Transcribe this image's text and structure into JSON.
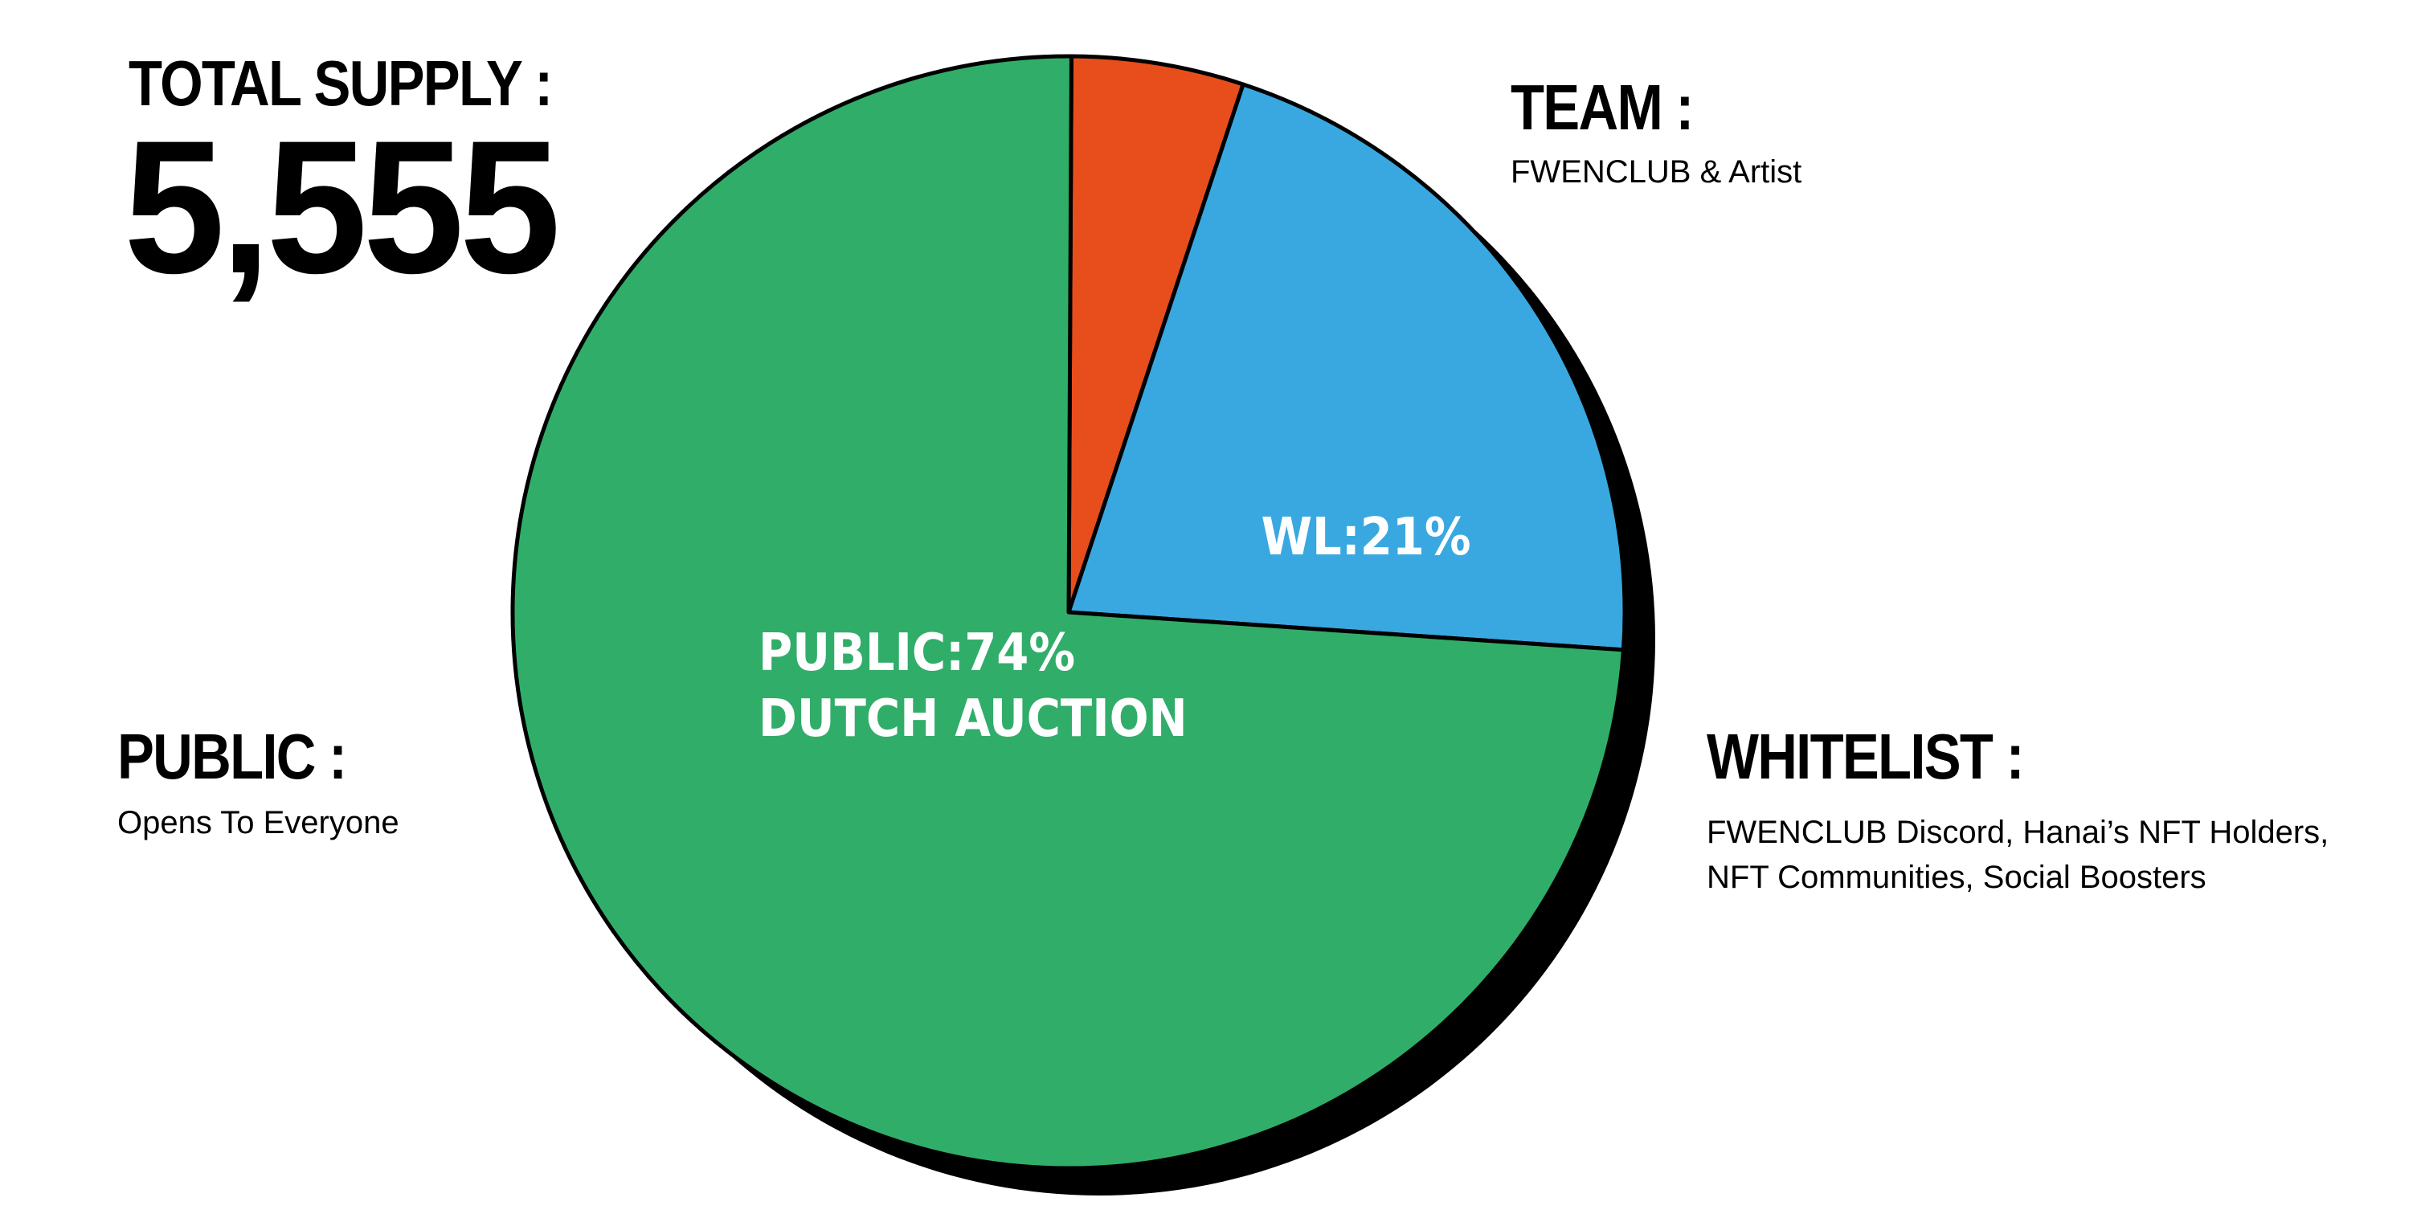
{
  "headline": {
    "total_label": "TOTAL SUPPLY :",
    "total_value": "5,555"
  },
  "annotations": {
    "team": {
      "title": "TEAM :",
      "desc": "FWENCLUB & Artist"
    },
    "public": {
      "title": "PUBLIC :",
      "desc": "Opens To Everyone"
    },
    "whitelist": {
      "title": "WHITELIST :",
      "desc_line1": "FWENCLUB Discord, Hanai’s NFT Holders,",
      "desc_line2": "NFT Communities, Social Boosters"
    }
  },
  "chart_data": {
    "type": "pie",
    "title": "",
    "slices": [
      {
        "key": "team",
        "value": 5,
        "color": "#e84e1c",
        "label_lines": []
      },
      {
        "key": "whitelist",
        "value": 21,
        "color": "#3aa8e0",
        "label_lines": [
          "WL:21%"
        ]
      },
      {
        "key": "public",
        "value": 74,
        "color": "#31ad6a",
        "label_lines": [
          "PUBLIC:74%",
          "DUTCH AUCTION"
        ]
      }
    ]
  }
}
